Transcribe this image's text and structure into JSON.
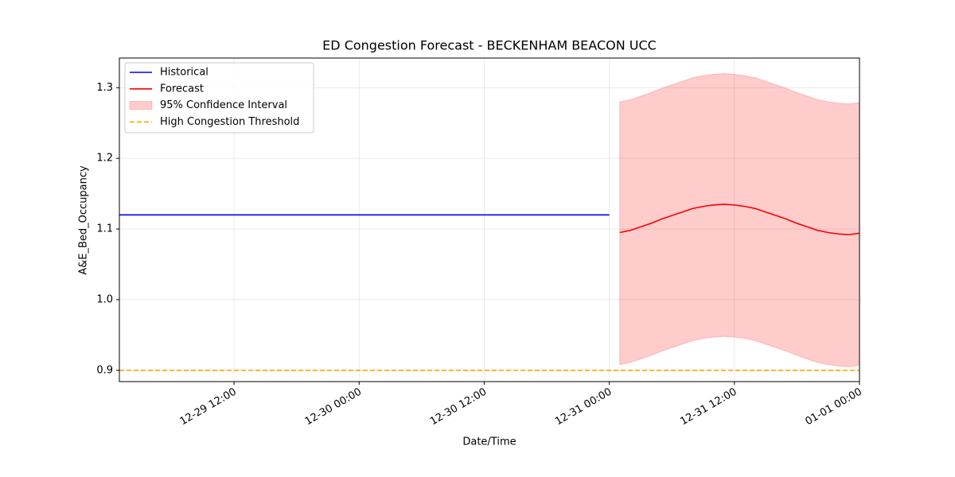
{
  "chart_data": {
    "type": "forecast",
    "title": "ED Congestion Forecast - BECKENHAM BEACON UCC",
    "x_label": "Date/Time",
    "y_label": "A&E_Bed_Occupancy",
    "xlim": [
      "12-29 01:00",
      "01-01 00:00"
    ],
    "xticks": [
      "12-29 12:00",
      "12-30 00:00",
      "12-30 12:00",
      "12-31 00:00",
      "12-31 12:00",
      "01-01 00:00"
    ],
    "ylim": [
      0.884,
      1.342
    ],
    "yticks": [
      {
        "value": 0.9,
        "label": "0.9"
      },
      {
        "value": 1.0,
        "label": "1.0"
      },
      {
        "value": 1.1,
        "label": "1.1"
      },
      {
        "value": 1.2,
        "label": "1.2"
      },
      {
        "value": 1.3,
        "label": "1.3"
      }
    ],
    "grid": true,
    "legend": "upper left",
    "series": [
      {
        "name": "Historical",
        "color": "#0000ff",
        "x": [
          "12-29 01:00",
          "12-31 00:00"
        ],
        "values": [
          1.12,
          1.12
        ]
      },
      {
        "name": "Forecast",
        "color": "#ff0000",
        "x": [
          "12-31 01:00",
          "12-31 02:00",
          "12-31 03:00",
          "12-31 04:00",
          "12-31 05:00",
          "12-31 06:00",
          "12-31 07:00",
          "12-31 08:00",
          "12-31 09:00",
          "12-31 10:00",
          "12-31 11:00",
          "12-31 12:00",
          "12-31 13:00",
          "12-31 14:00",
          "12-31 15:00",
          "12-31 16:00",
          "12-31 17:00",
          "12-31 18:00",
          "12-31 19:00",
          "12-31 20:00",
          "12-31 21:00",
          "12-31 22:00",
          "12-31 23:00",
          "01-01 00:00"
        ],
        "values": [
          1.095,
          1.098,
          1.103,
          1.108,
          1.114,
          1.119,
          1.124,
          1.129,
          1.132,
          1.134,
          1.135,
          1.134,
          1.132,
          1.129,
          1.124,
          1.119,
          1.114,
          1.108,
          1.103,
          1.098,
          1.095,
          1.093,
          1.092,
          1.094
        ]
      }
    ],
    "band": {
      "name": "95% Confidence Interval",
      "color": "#ff0000",
      "upper": [
        1.28,
        1.283,
        1.288,
        1.293,
        1.299,
        1.304,
        1.309,
        1.314,
        1.317,
        1.319,
        1.32,
        1.319,
        1.317,
        1.314,
        1.309,
        1.304,
        1.299,
        1.293,
        1.288,
        1.283,
        1.28,
        1.278,
        1.277,
        1.279
      ],
      "lower": [
        0.908,
        0.911,
        0.916,
        0.921,
        0.927,
        0.932,
        0.937,
        0.942,
        0.945,
        0.947,
        0.948,
        0.947,
        0.945,
        0.942,
        0.937,
        0.932,
        0.927,
        0.921,
        0.916,
        0.911,
        0.908,
        0.906,
        0.905,
        0.907
      ]
    },
    "threshold": {
      "name": "High Congestion Threshold",
      "value": 0.9,
      "color": "#ffa500"
    }
  }
}
